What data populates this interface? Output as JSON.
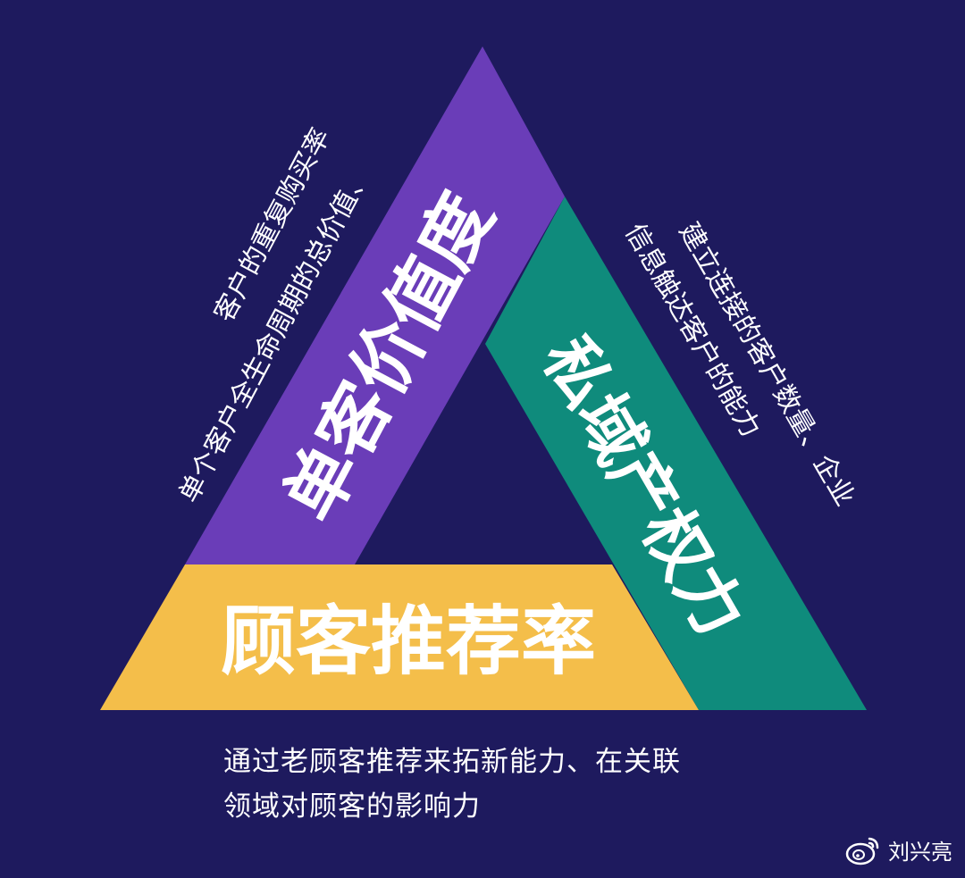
{
  "colors": {
    "background": "#1e1a5e",
    "left_bar": "#6a3db8",
    "right_bar": "#0f8b7c",
    "bottom_bar": "#f4be4a",
    "text": "#ffffff"
  },
  "diagram": {
    "left_side": {
      "title": "单客价值度",
      "description_line1": "单个客户全生命周期的总价值、",
      "description_line2": "客户的重复购买率"
    },
    "right_side": {
      "title": "私域产权力",
      "description_line1": "建立连接的客户数量、企业",
      "description_line2": "信息触达客户的能力"
    },
    "bottom_side": {
      "title": "顾客推荐率",
      "description_line1": "通过老顾客推荐来拓新能力、在关联",
      "description_line2": "领域对顾客的影响力"
    }
  },
  "watermark": {
    "icon": "weibo-icon",
    "author": "刘兴亮"
  }
}
